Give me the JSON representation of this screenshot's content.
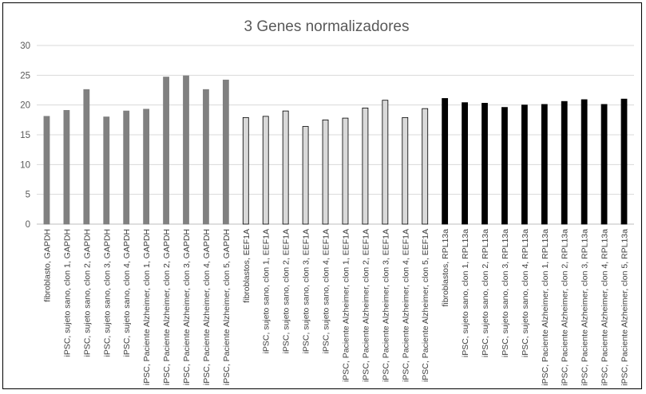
{
  "chart_data": {
    "type": "bar",
    "title": "3 Genes normalizadores",
    "xlabel": "",
    "ylabel": "",
    "ylim": [
      0,
      30
    ],
    "yticks": [
      0,
      5,
      10,
      15,
      20,
      25,
      30
    ],
    "grid": "horizontal",
    "legend": "none",
    "categories": [
      "fibroblasto, GAPDH",
      "iPSC, sujeto sano, clon 1, GAPDH",
      "iPSC, sujeto sano, clon 2, GAPDH",
      "iPSC, sujeto sano, clon 3, GAPDH",
      "iPSC, sujeto sano, clon 4, GAPDH",
      "iPSC, Paciente Alzheimer, clon 1, GAPDH",
      "iPSC, Paciente Alzheimer, clon 2, GAPDH",
      "iPSC, Paciente Alzheimer, clon 3, GAPDH",
      "iPSC, Paciente Alzheimer, clon 4, GAPDH",
      "iPSC, Paciente Alzheimer, clon 5, GAPDH",
      "fibroblastos, EEF1A",
      "iPSC, sujeto sano, clon 1, EEF1A",
      "iPSC, sujeto sano, clon 2, EEF1A",
      "iPSC, sujeto sano, clon 3, EEF1A",
      "iPSC, sujeto sano, clon 4, EEF1A",
      "iPSC, Paciente Alzheimer, clon 1, EEF1A",
      "iPSC, Paciente Alzheimer, clon 2, EEF1A",
      "iPSC, Paciente Alzheimer, clon 3, EEF1A",
      "iPSC, Paciente Alzheimer, clon 4, EEF1A",
      "iPSC, Paciente Alzheimer, clon 5, EEF1A",
      "fibroblastos, RPL13a",
      "iPSC, sujeto sano, clon 1, RPL13a",
      "iPSC, sujeto sano, clon 2, RPL13a",
      "iPSC, sujeto sano, clon 3, RPL13a",
      "iPSC, sujeto sano, clon 4, RPL13a",
      "iPSC, Paciente Alzheimer, clon 1, RPL13a",
      "iPSC, Paciente Alzheimer, clon 2, RPL13a",
      "iPSC, Paciente Alzheimer, clon 3, RPL13a",
      "iPSC, Paciente Alzheimer, clon 4, RPL13a",
      "iPSC, Paciente Alzheimer, clon 5, RPL13a"
    ],
    "values": [
      18.1,
      19.1,
      22.6,
      18.0,
      19.0,
      19.3,
      24.7,
      24.9,
      22.6,
      24.2,
      17.9,
      18.1,
      19.0,
      16.4,
      17.5,
      17.8,
      19.5,
      20.8,
      17.9,
      19.4,
      21.1,
      20.4,
      20.3,
      19.6,
      20.0,
      20.1,
      20.6,
      20.9,
      20.1,
      21.0
    ],
    "bar_fill": [
      "#808080",
      "#808080",
      "#808080",
      "#808080",
      "#808080",
      "#808080",
      "#808080",
      "#808080",
      "#808080",
      "#808080",
      "#d9d9d9",
      "#d9d9d9",
      "#d9d9d9",
      "#d9d9d9",
      "#d9d9d9",
      "#d9d9d9",
      "#d9d9d9",
      "#d9d9d9",
      "#d9d9d9",
      "#d9d9d9",
      "#000000",
      "#000000",
      "#000000",
      "#000000",
      "#000000",
      "#000000",
      "#000000",
      "#000000",
      "#000000",
      "#000000"
    ],
    "bar_stroke": [
      "#808080",
      "#808080",
      "#808080",
      "#808080",
      "#808080",
      "#808080",
      "#808080",
      "#808080",
      "#808080",
      "#808080",
      "#000000",
      "#000000",
      "#000000",
      "#000000",
      "#000000",
      "#000000",
      "#000000",
      "#000000",
      "#000000",
      "#000000",
      "#000000",
      "#000000",
      "#000000",
      "#000000",
      "#000000",
      "#000000",
      "#000000",
      "#000000",
      "#000000",
      "#000000"
    ],
    "colors": {
      "title": "#595959",
      "axis_text": "#595959",
      "gridline": "#d9d9d9",
      "tick_text": "#404040"
    }
  }
}
